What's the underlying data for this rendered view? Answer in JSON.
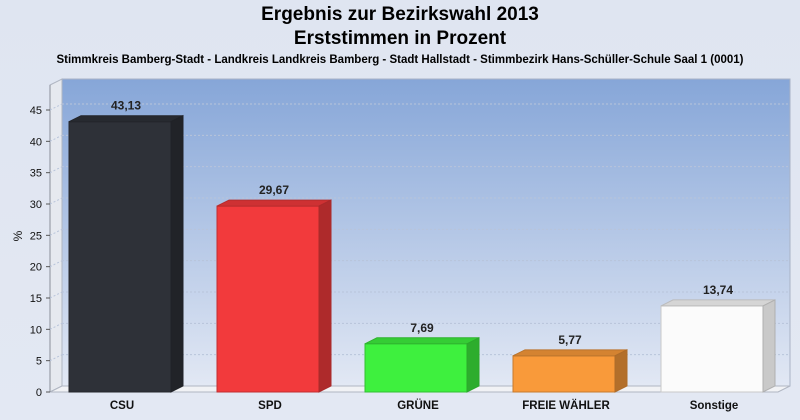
{
  "titles": {
    "line1": "Ergebnis zur Bezirkswahl 2013",
    "line2": "Erststimmen in Prozent",
    "subtitle": "Stimmkreis Bamberg-Stadt - Landkreis Landkreis Bamberg - Stadt Hallstadt - Stimmbezirk Hans-Schüller-Schule Saal 1 (0001)"
  },
  "chart_data": {
    "type": "bar",
    "title": "Ergebnis zur Bezirkswahl 2013 — Erststimmen in Prozent",
    "xlabel": "",
    "ylabel": "%",
    "ylim": [
      0,
      45
    ],
    "yticks": [
      0,
      5,
      10,
      15,
      20,
      25,
      30,
      35,
      40,
      45
    ],
    "grid": true,
    "categories": [
      "CSU",
      "SPD",
      "GRÜNE",
      "FREIE WÄHLER",
      "Sonstige"
    ],
    "values": [
      43.13,
      29.67,
      7.69,
      5.77,
      13.74
    ],
    "value_labels": [
      "43,13",
      "29,67",
      "7,69",
      "5,77",
      "13,74"
    ],
    "colors": [
      "#2e3138",
      "#f23a3c",
      "#3ef03e",
      "#f99a3a",
      "#fbfbfb"
    ]
  }
}
